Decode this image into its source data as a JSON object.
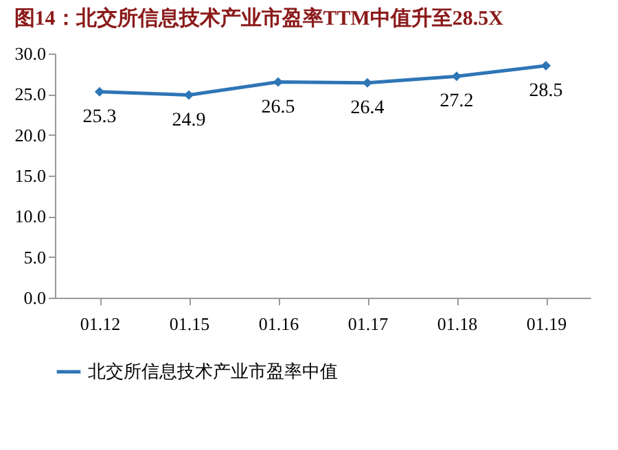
{
  "chart_data": {
    "type": "line",
    "title": "图14：北交所信息技术产业市盈率TTM中值升至28.5X",
    "categories": [
      "01.12",
      "01.15",
      "01.16",
      "01.17",
      "01.18",
      "01.19"
    ],
    "series": [
      {
        "name": "北交所信息技术产业市盈率中值",
        "color": "#2e75b6",
        "values": [
          25.3,
          24.9,
          26.5,
          26.4,
          27.2,
          28.5
        ]
      }
    ],
    "ylim": [
      0,
      30
    ],
    "yticks": [
      {
        "value": 0,
        "label": "0.0"
      },
      {
        "value": 5,
        "label": "5.0"
      },
      {
        "value": 10,
        "label": "10.0"
      },
      {
        "value": 15,
        "label": "15.0"
      },
      {
        "value": 20,
        "label": "20.0"
      },
      {
        "value": 25,
        "label": "25.0"
      },
      {
        "value": 30,
        "label": "30.0"
      }
    ],
    "data_labels": true,
    "marker": "diamond",
    "legend": "bottom",
    "grid": false
  }
}
